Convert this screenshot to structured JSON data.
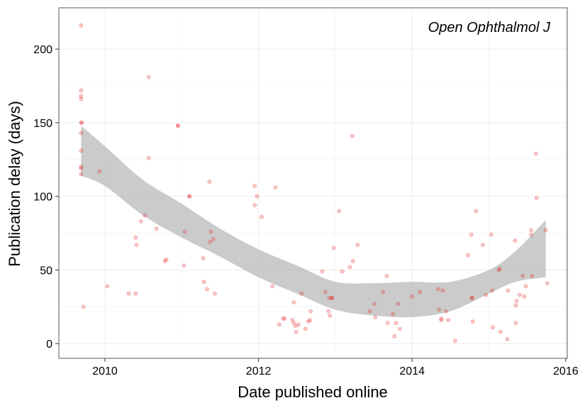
{
  "chart_data": {
    "type": "scatter",
    "title": "",
    "annotation": "Open Ophthalmol J",
    "xlabel": "Date published online",
    "ylabel": "Publication delay (days)",
    "xlim": [
      2009.4,
      2016.02
    ],
    "ylim": [
      -10,
      228
    ],
    "x_ticks": [
      2010,
      2012,
      2014,
      2016
    ],
    "x_tick_labels": [
      "2010",
      "2012",
      "2014",
      "2016"
    ],
    "y_ticks": [
      0,
      50,
      100,
      150,
      200
    ],
    "y_tick_labels": [
      "0",
      "50",
      "100",
      "150",
      "200"
    ],
    "grid": true,
    "colors": {
      "point": "#e41a1c",
      "band_fill": "#bebebe",
      "panel_border": "#7f7f7f",
      "grid": "#ebebeb"
    },
    "point_opacity": 0.25,
    "points": [
      [
        2009.69,
        216
      ],
      [
        2009.69,
        172
      ],
      [
        2009.69,
        168
      ],
      [
        2009.69,
        166
      ],
      [
        2009.69,
        150
      ],
      [
        2009.7,
        150
      ],
      [
        2009.69,
        143
      ],
      [
        2009.69,
        131
      ],
      [
        2009.69,
        120
      ],
      [
        2009.69,
        119
      ],
      [
        2009.69,
        115
      ],
      [
        2009.72,
        25
      ],
      [
        2009.93,
        117
      ],
      [
        2010.03,
        39
      ],
      [
        2010.31,
        34
      ],
      [
        2010.4,
        34
      ],
      [
        2010.4,
        72
      ],
      [
        2010.41,
        67
      ],
      [
        2010.47,
        83
      ],
      [
        2010.52,
        87
      ],
      [
        2010.57,
        181
      ],
      [
        2010.57,
        126
      ],
      [
        2010.67,
        78
      ],
      [
        2010.78,
        56
      ],
      [
        2010.8,
        57
      ],
      [
        2010.95,
        148
      ],
      [
        2010.95,
        148
      ],
      [
        2011.03,
        53
      ],
      [
        2011.04,
        76
      ],
      [
        2011.1,
        100
      ],
      [
        2011.1,
        100
      ],
      [
        2011.28,
        58
      ],
      [
        2011.29,
        42
      ],
      [
        2011.33,
        37
      ],
      [
        2011.36,
        110
      ],
      [
        2011.37,
        69
      ],
      [
        2011.38,
        76
      ],
      [
        2011.41,
        71
      ],
      [
        2011.43,
        34
      ],
      [
        2011.95,
        107
      ],
      [
        2011.95,
        94
      ],
      [
        2011.98,
        100
      ],
      [
        2012.04,
        86
      ],
      [
        2012.18,
        39
      ],
      [
        2012.22,
        106
      ],
      [
        2012.27,
        13
      ],
      [
        2012.32,
        17
      ],
      [
        2012.34,
        17
      ],
      [
        2012.44,
        16
      ],
      [
        2012.46,
        14
      ],
      [
        2012.46,
        28
      ],
      [
        2012.48,
        12
      ],
      [
        2012.49,
        8
      ],
      [
        2012.52,
        13
      ],
      [
        2012.56,
        34
      ],
      [
        2012.61,
        10
      ],
      [
        2012.65,
        15
      ],
      [
        2012.67,
        16
      ],
      [
        2012.68,
        22
      ],
      [
        2012.83,
        49
      ],
      [
        2012.87,
        35
      ],
      [
        2012.91,
        22
      ],
      [
        2012.92,
        31
      ],
      [
        2012.93,
        19
      ],
      [
        2012.95,
        31
      ],
      [
        2012.96,
        31
      ],
      [
        2012.98,
        65
      ],
      [
        2013.05,
        90
      ],
      [
        2013.09,
        49
      ],
      [
        2013.19,
        52
      ],
      [
        2013.22,
        141
      ],
      [
        2013.23,
        56
      ],
      [
        2013.29,
        67
      ],
      [
        2013.45,
        22
      ],
      [
        2013.51,
        27
      ],
      [
        2013.52,
        18
      ],
      [
        2013.62,
        35
      ],
      [
        2013.67,
        46
      ],
      [
        2013.68,
        14
      ],
      [
        2013.75,
        20
      ],
      [
        2013.77,
        5
      ],
      [
        2013.79,
        14
      ],
      [
        2013.82,
        27
      ],
      [
        2013.84,
        10
      ],
      [
        2014.0,
        32
      ],
      [
        2014.1,
        35
      ],
      [
        2014.34,
        37
      ],
      [
        2014.35,
        23
      ],
      [
        2014.38,
        17
      ],
      [
        2014.38,
        16
      ],
      [
        2014.4,
        36
      ],
      [
        2014.44,
        22
      ],
      [
        2014.47,
        16
      ],
      [
        2014.56,
        2
      ],
      [
        2014.73,
        60
      ],
      [
        2014.77,
        74
      ],
      [
        2014.78,
        31
      ],
      [
        2014.78,
        31
      ],
      [
        2014.79,
        15
      ],
      [
        2014.83,
        90
      ],
      [
        2014.92,
        67
      ],
      [
        2014.96,
        33
      ],
      [
        2015.03,
        74
      ],
      [
        2015.04,
        36
      ],
      [
        2015.05,
        11
      ],
      [
        2015.13,
        50
      ],
      [
        2015.14,
        51
      ],
      [
        2015.15,
        8
      ],
      [
        2015.25,
        36
      ],
      [
        2015.24,
        3
      ],
      [
        2015.34,
        70
      ],
      [
        2015.35,
        14
      ],
      [
        2015.35,
        26
      ],
      [
        2015.36,
        29
      ],
      [
        2015.4,
        33
      ],
      [
        2015.46,
        32
      ],
      [
        2015.48,
        39
      ],
      [
        2015.55,
        74
      ],
      [
        2015.55,
        77
      ],
      [
        2015.56,
        46
      ],
      [
        2015.61,
        129
      ],
      [
        2015.62,
        99
      ],
      [
        2015.74,
        77
      ],
      [
        2015.76,
        41
      ],
      [
        2015.44,
        46
      ]
    ],
    "smooth_band": {
      "x": [
        2009.69,
        2010.0,
        2010.5,
        2011.0,
        2011.5,
        2012.0,
        2012.5,
        2013.0,
        2013.5,
        2014.0,
        2014.5,
        2015.0,
        2015.35,
        2015.74
      ],
      "y_upper": [
        148,
        134,
        111,
        95,
        78,
        64,
        53,
        42,
        41,
        42,
        42,
        50,
        63,
        84
      ],
      "y_lower": [
        114,
        107,
        87,
        72,
        59,
        45,
        34,
        23,
        19,
        18,
        22,
        34,
        42,
        45
      ]
    }
  }
}
